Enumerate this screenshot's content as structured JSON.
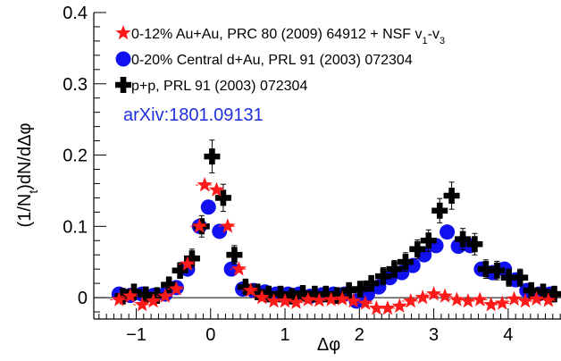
{
  "chart_data": {
    "type": "scatter",
    "title": "",
    "xlabel": "Δφ",
    "ylabel": "(1/N_t)dN/dΔφ",
    "xlim": [
      -1.57,
      4.71
    ],
    "ylim": [
      -0.03,
      0.4
    ],
    "xticks": [
      -1,
      0,
      1,
      2,
      3,
      4
    ],
    "yticks": [
      0,
      0.1,
      0.2,
      0.3,
      0.4
    ],
    "xtick_labels": [
      "−1",
      "0",
      "1",
      "2",
      "3",
      "4"
    ],
    "ytick_labels": [
      "0",
      "0.1",
      "0.2",
      "0.3",
      "0.4"
    ],
    "grid": false,
    "legend_position": "top-left",
    "annotation": "arXiv:1801.09131",
    "series": [
      {
        "name": "0-12% Au+Au, PRC 80 (2009) 64912 + NSF v",
        "name_sub1": "1",
        "name_mid": "-v",
        "name_sub2": "3",
        "marker": "star",
        "color": "#ff1a1a",
        "points": [
          [
            -1.23,
            -0.003
          ],
          [
            -1.08,
            0.002
          ],
          [
            -0.92,
            -0.01
          ],
          [
            -0.77,
            -0.005
          ],
          [
            -0.61,
            0.002
          ],
          [
            -0.46,
            0.012
          ],
          [
            -0.31,
            0.047
          ],
          [
            -0.15,
            0.1
          ],
          [
            -0.08,
            0.158
          ],
          [
            0.08,
            0.151
          ],
          [
            0.23,
            0.1
          ],
          [
            0.38,
            0.04
          ],
          [
            0.54,
            0.01
          ],
          [
            0.69,
            0.0
          ],
          [
            0.85,
            -0.005
          ],
          [
            1.0,
            -0.005
          ],
          [
            1.15,
            -0.007
          ],
          [
            1.31,
            -0.003
          ],
          [
            1.46,
            -0.004
          ],
          [
            1.62,
            -0.003
          ],
          [
            1.77,
            -0.002
          ],
          [
            1.92,
            -0.005
          ],
          [
            2.08,
            -0.008
          ],
          [
            2.23,
            -0.015
          ],
          [
            2.38,
            -0.015
          ],
          [
            2.54,
            -0.012
          ],
          [
            2.69,
            -0.005
          ],
          [
            2.85,
            0.0
          ],
          [
            3.0,
            0.005
          ],
          [
            3.15,
            0.002
          ],
          [
            3.31,
            -0.003
          ],
          [
            3.46,
            -0.005
          ],
          [
            3.62,
            -0.003
          ],
          [
            3.77,
            -0.01
          ],
          [
            3.92,
            -0.008
          ],
          [
            4.08,
            -0.002
          ],
          [
            4.23,
            -0.005
          ],
          [
            4.38,
            -0.002
          ],
          [
            4.54,
            -0.004
          ]
        ]
      },
      {
        "name": "0-20% Central d+Au, PRL 91 (2003) 072304",
        "marker": "circle",
        "color": "#1010f0",
        "points": [
          [
            -1.23,
            0.005
          ],
          [
            -1.08,
            0.003
          ],
          [
            -0.92,
            0.005
          ],
          [
            -0.77,
            0.003
          ],
          [
            -0.61,
            0.005
          ],
          [
            -0.46,
            0.014
          ],
          [
            -0.31,
            0.04
          ],
          [
            -0.15,
            0.1
          ],
          [
            -0.03,
            0.127
          ],
          [
            0.12,
            0.093
          ],
          [
            0.28,
            0.04
          ],
          [
            0.43,
            0.012
          ],
          [
            0.58,
            0.01
          ],
          [
            0.73,
            0.008
          ],
          [
            0.88,
            0.005
          ],
          [
            1.04,
            0.005
          ],
          [
            1.19,
            0.005
          ],
          [
            1.34,
            0.002
          ],
          [
            1.5,
            0.004
          ],
          [
            1.65,
            0.005
          ],
          [
            1.8,
            0.005
          ],
          [
            1.96,
            -0.005
          ],
          [
            2.11,
            0.005
          ],
          [
            2.26,
            0.015
          ],
          [
            2.41,
            0.028
          ],
          [
            2.57,
            0.035
          ],
          [
            2.72,
            0.045
          ],
          [
            2.87,
            0.06
          ],
          [
            3.03,
            0.073
          ],
          [
            3.18,
            0.092
          ],
          [
            3.33,
            0.072
          ],
          [
            3.49,
            0.073
          ],
          [
            3.64,
            0.04
          ],
          [
            3.79,
            0.035
          ],
          [
            3.95,
            0.04
          ],
          [
            4.1,
            0.025
          ],
          [
            4.25,
            0.01
          ],
          [
            4.41,
            0.005
          ],
          [
            4.56,
            0.005
          ]
        ]
      },
      {
        "name": "p+p, PRL 91 (2003) 072304",
        "marker": "cross",
        "color": "#000000",
        "points": [
          [
            -1.18,
            0.002,
            0.006
          ],
          [
            -1.03,
            0.008,
            0.006
          ],
          [
            -0.87,
            0.004,
            0.006
          ],
          [
            -0.72,
            0.003,
            0.006
          ],
          [
            -0.56,
            0.018,
            0.006
          ],
          [
            -0.41,
            0.038,
            0.006
          ],
          [
            -0.25,
            0.055,
            0.008
          ],
          [
            -0.12,
            0.1,
            0.01
          ],
          [
            0.02,
            0.198,
            0.018
          ],
          [
            0.17,
            0.14,
            0.014
          ],
          [
            0.32,
            0.06,
            0.008
          ],
          [
            0.47,
            0.015,
            0.006
          ],
          [
            0.63,
            0.008,
            0.006
          ],
          [
            0.78,
            0.005,
            0.006
          ],
          [
            0.94,
            0.005,
            0.006
          ],
          [
            1.09,
            0.002,
            0.006
          ],
          [
            1.24,
            0.006,
            0.006
          ],
          [
            1.4,
            0.005,
            0.006
          ],
          [
            1.55,
            0.005,
            0.006
          ],
          [
            1.7,
            0.003,
            0.006
          ],
          [
            1.86,
            0.01,
            0.006
          ],
          [
            2.01,
            0.012,
            0.006
          ],
          [
            2.16,
            0.02,
            0.006
          ],
          [
            2.32,
            0.03,
            0.007
          ],
          [
            2.47,
            0.04,
            0.007
          ],
          [
            2.62,
            0.05,
            0.008
          ],
          [
            2.78,
            0.068,
            0.008
          ],
          [
            2.93,
            0.08,
            0.01
          ],
          [
            3.08,
            0.122,
            0.012
          ],
          [
            3.24,
            0.143,
            0.014
          ],
          [
            3.39,
            0.082,
            0.01
          ],
          [
            3.55,
            0.075,
            0.01
          ],
          [
            3.7,
            0.04,
            0.008
          ],
          [
            3.85,
            0.038,
            0.008
          ],
          [
            4.01,
            0.028,
            0.007
          ],
          [
            4.16,
            0.028,
            0.007
          ],
          [
            4.31,
            0.01,
            0.006
          ],
          [
            4.47,
            0.008,
            0.006
          ],
          [
            4.62,
            0.005,
            0.006
          ]
        ]
      }
    ]
  }
}
